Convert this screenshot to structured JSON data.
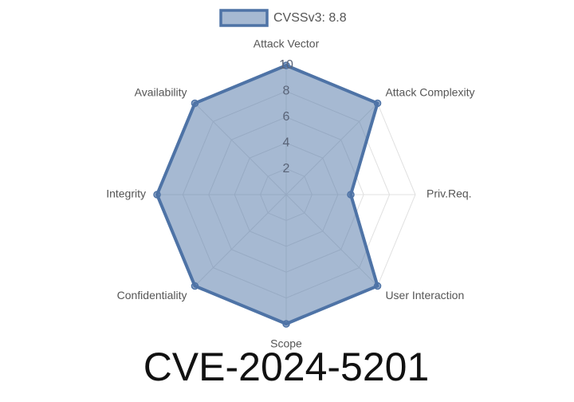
{
  "chart_data": {
    "type": "radar",
    "title": "CVE-2024-5201",
    "categories": [
      "Attack Vector",
      "Attack Complexity",
      "Priv.Req.",
      "User Interaction",
      "Scope",
      "Confidentiality",
      "Integrity",
      "Availability"
    ],
    "series": [
      {
        "name": "CVSSv3: 8.8",
        "color": "#4e73a6",
        "values": [
          10,
          10,
          5,
          10,
          10,
          10,
          10,
          10
        ]
      }
    ],
    "rlim": [
      0,
      10
    ],
    "rticks": [
      2,
      4,
      6,
      8,
      10
    ],
    "grid": true,
    "legend": "top"
  }
}
